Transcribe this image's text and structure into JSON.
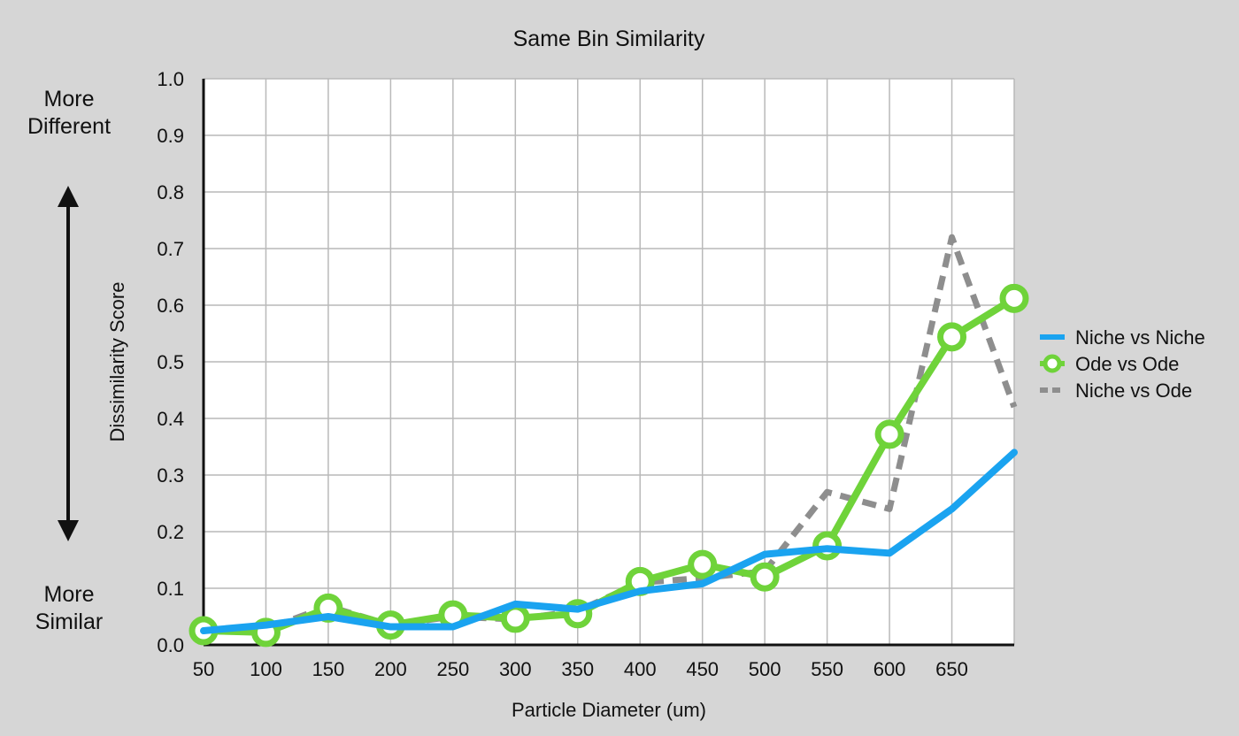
{
  "chart_data": {
    "type": "line",
    "title": "Same Bin Similarity",
    "xlabel": "Particle Diameter (um)",
    "ylabel": "Dissimilarity Score",
    "x": [
      50,
      100,
      150,
      200,
      250,
      300,
      350,
      400,
      450,
      500,
      550,
      600,
      650,
      700
    ],
    "x_tick_labels": [
      "50",
      "100",
      "150",
      "200",
      "250",
      "300",
      "350",
      "400",
      "450",
      "500",
      "550",
      "600",
      "650"
    ],
    "y_tick_labels": [
      "0.0",
      "0.1",
      "0.2",
      "0.3",
      "0.4",
      "0.5",
      "0.6",
      "0.7",
      "0.8",
      "0.9",
      "1.0"
    ],
    "ylim": [
      0,
      1
    ],
    "xlim": [
      50,
      700
    ],
    "grid": true,
    "legend_position": "right",
    "series": [
      {
        "name": "Niche vs Niche",
        "color": "#1aa3f0",
        "style": "solid",
        "values": [
          0.025,
          0.035,
          0.05,
          0.032,
          0.032,
          0.072,
          0.063,
          0.095,
          0.108,
          0.16,
          0.17,
          0.162,
          0.24,
          0.34
        ]
      },
      {
        "name": "Ode vs Ode",
        "color": "#6fd33a",
        "style": "solid-markers",
        "values": [
          0.025,
          0.022,
          0.065,
          0.035,
          0.053,
          0.047,
          0.055,
          0.112,
          0.142,
          0.12,
          0.175,
          0.372,
          0.544,
          0.612
        ]
      },
      {
        "name": "Niche vs Ode",
        "color": "#8e8e8e",
        "style": "dashed",
        "values": [
          0.025,
          0.028,
          0.068,
          0.035,
          0.05,
          0.045,
          0.06,
          0.11,
          0.118,
          0.13,
          0.27,
          0.24,
          0.72,
          0.42
        ]
      }
    ]
  },
  "annotations": {
    "top": "More Different",
    "bottom": "More Similar",
    "arrow_icon": "double-headed-vertical-arrow-icon"
  }
}
